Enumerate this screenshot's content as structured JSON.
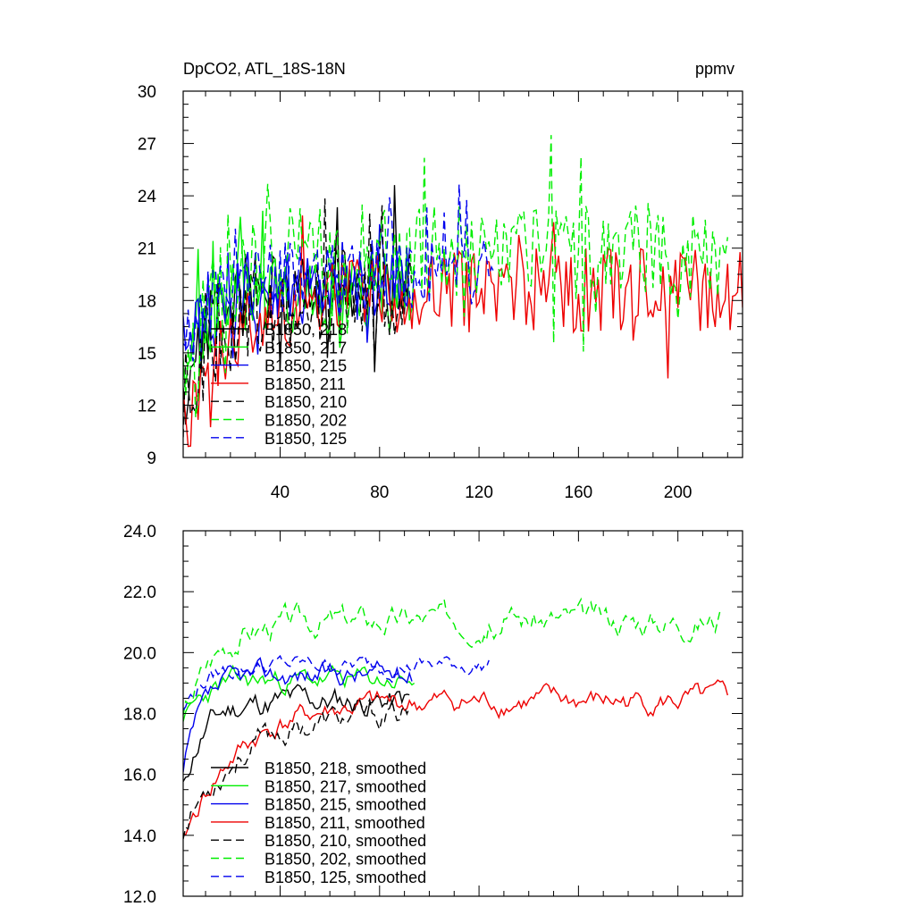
{
  "header": {
    "title": "DpCO2, ATL_18S-18N",
    "units": "ppmv"
  },
  "colors": {
    "black": "#000000",
    "green": "#00ee00",
    "blue": "#0000ee",
    "red": "#ee0000"
  },
  "chart_data": [
    {
      "type": "line",
      "panel": "top",
      "title": "DpCO2, ATL_18S-18N",
      "units_label": "ppmv",
      "xlim": [
        1,
        226
      ],
      "ylim": [
        9,
        30
      ],
      "yticks": [
        9,
        12,
        15,
        18,
        21,
        24,
        27,
        30
      ],
      "ytick_labels": [
        "9",
        "12",
        "15",
        "18",
        "21",
        "24",
        "27",
        "30"
      ],
      "xticks": [
        40,
        80,
        120,
        160,
        200
      ],
      "xtick_labels": [
        "40",
        "80",
        "120",
        "160",
        "200"
      ],
      "legend_position": "lower-left",
      "series": [
        {
          "name": "B1850, 218",
          "color": "black",
          "dash": "solid",
          "length": 92,
          "y0": 11.2,
          "base": 18.9,
          "amp": 1.4,
          "seed": 11,
          "trend": "fast"
        },
        {
          "name": "B1850, 217",
          "color": "green",
          "dash": "solid",
          "length": 94,
          "y0": 12.0,
          "base": 18.6,
          "amp": 1.6,
          "seed": 23,
          "trend": "fast"
        },
        {
          "name": "B1850, 215",
          "color": "blue",
          "dash": "solid",
          "length": 93,
          "y0": 13.0,
          "base": 19.0,
          "amp": 1.4,
          "seed": 37,
          "trend": "fast"
        },
        {
          "name": "B1850, 211",
          "color": "red",
          "dash": "solid",
          "length": 226,
          "y0": 10.4,
          "base": 18.6,
          "amp": 1.5,
          "seed": 41,
          "trend": "slow"
        },
        {
          "name": "B1850, 210",
          "color": "black",
          "dash": "dashed",
          "length": 93,
          "y0": 12.5,
          "base": 18.5,
          "amp": 1.5,
          "seed": 53,
          "trend": "slow"
        },
        {
          "name": "B1850, 202",
          "color": "green",
          "dash": "dashed",
          "length": 220,
          "y0": 13.5,
          "base": 20.8,
          "amp": 1.7,
          "seed": 67,
          "trend": "medium"
        },
        {
          "name": "B1850, 125",
          "color": "blue",
          "dash": "dashed",
          "length": 126,
          "y0": 14.5,
          "base": 19.4,
          "amp": 1.3,
          "seed": 79,
          "trend": "fast"
        }
      ]
    },
    {
      "type": "line",
      "panel": "bottom",
      "xlim": [
        1,
        226
      ],
      "ylim": [
        12.0,
        24.0
      ],
      "yticks": [
        12.0,
        14.0,
        16.0,
        18.0,
        20.0,
        22.0,
        24.0
      ],
      "ytick_labels": [
        "12.0",
        "14.0",
        "16.0",
        "18.0",
        "20.0",
        "22.0",
        "24.0"
      ],
      "xticks": [
        40,
        80,
        120,
        160,
        200
      ],
      "xtick_labels": [],
      "legend_position": "lower-left",
      "series": [
        {
          "name": "B1850, 218, smoothed",
          "color": "black",
          "dash": "solid",
          "length": 92,
          "y0": 15.5,
          "base": 18.4,
          "amp": 0.6,
          "seed": 11,
          "trend": "fast"
        },
        {
          "name": "B1850, 217, smoothed",
          "color": "green",
          "dash": "solid",
          "length": 94,
          "y0": 17.5,
          "base": 19.1,
          "amp": 0.5,
          "seed": 23,
          "trend": "fast"
        },
        {
          "name": "B1850, 215, smoothed",
          "color": "blue",
          "dash": "solid",
          "length": 93,
          "y0": 16.0,
          "base": 19.3,
          "amp": 0.5,
          "seed": 37,
          "trend": "fast"
        },
        {
          "name": "B1850, 211, smoothed",
          "color": "red",
          "dash": "solid",
          "length": 220,
          "y0": 13.8,
          "base": 18.4,
          "amp": 0.5,
          "seed": 41,
          "trend": "slow"
        },
        {
          "name": "B1850, 210, smoothed",
          "color": "black",
          "dash": "dashed",
          "length": 92,
          "y0": 14.2,
          "base": 18.0,
          "amp": 0.6,
          "seed": 53,
          "trend": "slow"
        },
        {
          "name": "B1850, 202, smoothed",
          "color": "green",
          "dash": "dashed",
          "length": 217,
          "y0": 17.8,
          "base": 21.1,
          "amp": 0.6,
          "seed": 67,
          "trend": "medium"
        },
        {
          "name": "B1850, 125, smoothed",
          "color": "blue",
          "dash": "dashed",
          "length": 124,
          "y0": 18.0,
          "base": 19.6,
          "amp": 0.4,
          "seed": 79,
          "trend": "fast"
        }
      ]
    }
  ]
}
